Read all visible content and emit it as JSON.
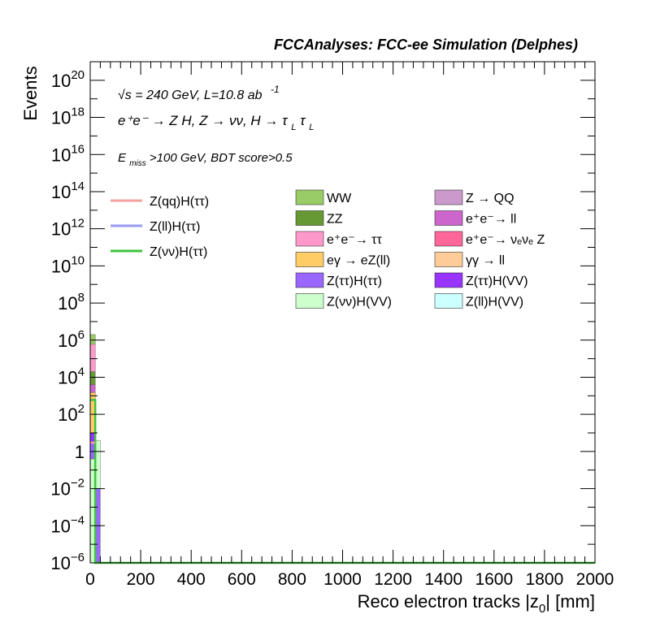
{
  "chart_data": {
    "type": "bar",
    "title": "FCCAnalyses: FCC-ee Simulation (Delphes)",
    "xlabel": "Reco electron tracks |z_{0}| [mm]",
    "ylabel": "Events",
    "xlim": [
      0,
      2000
    ],
    "ylim": [
      1e-06,
      1e+21
    ],
    "log_y": true,
    "x_ticks": [
      "0",
      "200",
      "400",
      "600",
      "800",
      "1000",
      "1200",
      "1400",
      "1600",
      "1800",
      "2000"
    ],
    "y_ticks": [
      {
        "v": 1e-06,
        "m": "10",
        "e": "−6"
      },
      {
        "v": 0.0001,
        "m": "10",
        "e": "−4"
      },
      {
        "v": 0.01,
        "m": "10",
        "e": "−2"
      },
      {
        "v": 1,
        "m": "1",
        "e": ""
      },
      {
        "v": 100.0,
        "m": "10",
        "e": "2"
      },
      {
        "v": 10000.0,
        "m": "10",
        "e": "4"
      },
      {
        "v": 1000000.0,
        "m": "10",
        "e": "6"
      },
      {
        "v": 100000000.0,
        "m": "10",
        "e": "8"
      },
      {
        "v": 10000000000.0,
        "m": "10",
        "e": "10"
      },
      {
        "v": 1000000000000.0,
        "m": "10",
        "e": "12"
      },
      {
        "v": 100000000000000.0,
        "m": "10",
        "e": "14"
      },
      {
        "v": 1e+16,
        "m": "10",
        "e": "16"
      },
      {
        "v": 1e+18,
        "m": "10",
        "e": "18"
      },
      {
        "v": 1e+20,
        "m": "10",
        "e": "20"
      }
    ],
    "annotations": {
      "energy": "√s = 240 GeV, L=10.8 ab",
      "energy_sup": "-1",
      "process": "e⁺e⁻ → Z H, Z → νν, H → τ",
      "process_sub1": "L",
      "process_tau": "τ",
      "process_sub2": "L",
      "cut_pre": "E",
      "cut_sub": "miss",
      "cut_post": ">100 GeV, BDT score>0.5"
    },
    "legend_signal": [
      {
        "name": "Z(qq)H(ττ)",
        "color": "#f4a09c"
      },
      {
        "name": "Z(ll)H(ττ)",
        "color": "#9a9af6"
      },
      {
        "name": "Z(νν)H(ττ)",
        "color": "#3ec23e"
      }
    ],
    "legend_background": [
      {
        "name": "WW",
        "color": "#99cc66"
      },
      {
        "name": "Z → QQ",
        "color": "#cc99cc"
      },
      {
        "name": "ZZ",
        "color": "#669933"
      },
      {
        "name": "e⁺e⁻→ ll",
        "color": "#cc66cc"
      },
      {
        "name": "e⁺e⁻→ ττ",
        "color": "#ff99cc"
      },
      {
        "name": "e⁺e⁻→ νₑνₑ Z",
        "color": "#ff6699"
      },
      {
        "name": "eγ → eZ(ll)",
        "color": "#ffcc66"
      },
      {
        "name": "γγ → ll",
        "color": "#ffcc99"
      },
      {
        "name": "Z(ττ)H(ττ)",
        "color": "#9966ff"
      },
      {
        "name": "Z(ττ)H(VV)",
        "color": "#9933ff"
      },
      {
        "name": "Z(νν)H(VV)",
        "color": "#ccffcc"
      },
      {
        "name": "Z(ll)H(VV)",
        "color": "#ccffff"
      }
    ],
    "bin_width": 20,
    "stack_bins": [
      {
        "x0": 0,
        "segments": [
          {
            "name": "Z(νν)H(VV)",
            "color": "#ccffcc",
            "bottom": 1e-06,
            "top": 0.4
          },
          {
            "name": "Z(ττ)H(ττ)",
            "color": "#9966ff",
            "bottom": 0.4,
            "top": 3
          },
          {
            "name": "Z(ττ)H(VV)",
            "color": "#9933ff",
            "bottom": 3,
            "top": 10
          },
          {
            "name": "eγ → eZ(ll)",
            "color": "#ffcc66",
            "bottom": 10,
            "top": 1500
          },
          {
            "name": "e⁺e⁻→ ll",
            "color": "#cc66cc",
            "bottom": 1500,
            "top": 4000
          },
          {
            "name": "ZZ",
            "color": "#669933",
            "bottom": 4000,
            "top": 20000
          },
          {
            "name": "e⁺e⁻→ ττ",
            "color": "#ff99cc",
            "bottom": 20000,
            "top": 600000
          },
          {
            "name": "WW",
            "color": "#99cc66",
            "bottom": 600000,
            "top": 2000000
          }
        ]
      },
      {
        "x0": 20,
        "segments": [
          {
            "name": "Z(ττ)H(ττ)",
            "color": "#9966ff",
            "bottom": 1e-06,
            "top": 0.01
          },
          {
            "name": "Z(νν)H(VV)",
            "color": "#ccffcc",
            "bottom": 0.01,
            "top": 4
          }
        ]
      }
    ],
    "signal_lines": [
      {
        "name": "Z(νν)H(ττ)",
        "color": "#3ec23e",
        "points": [
          [
            0,
            600
          ],
          [
            20,
            600
          ],
          [
            20,
            1e-06
          ],
          [
            2000,
            1e-06
          ]
        ]
      },
      {
        "name": "Z(qq)H(ττ)",
        "color": "#f4a09c",
        "points": [
          [
            0,
            3
          ],
          [
            20,
            3
          ]
        ]
      }
    ]
  }
}
